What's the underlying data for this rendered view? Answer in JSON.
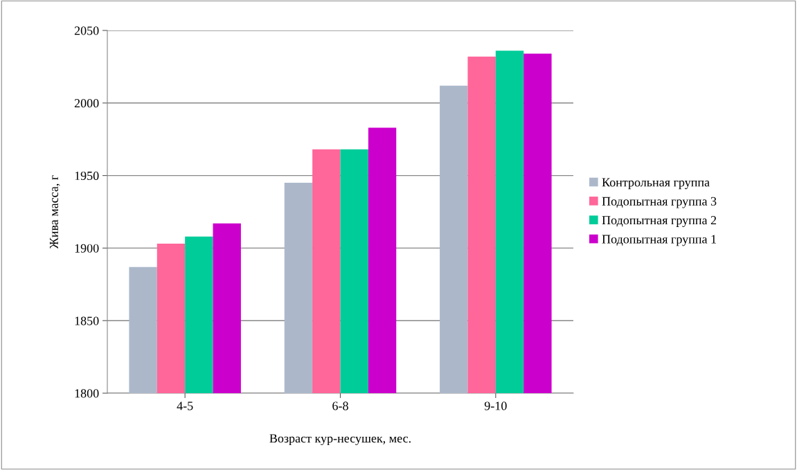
{
  "chart_data": {
    "type": "bar",
    "xlabel": "Возраст кур-несушек, мес.",
    "ylabel": "Жива масса, г",
    "categories": [
      "4-5",
      "6-8",
      "9-10"
    ],
    "series": [
      {
        "name": "Контрольная группа",
        "color": "#acb8ca",
        "values": [
          1887,
          1945,
          2012
        ]
      },
      {
        "name": "Подопытная группа 3",
        "color": "#ff6699",
        "values": [
          1903,
          1968,
          2032
        ]
      },
      {
        "name": "Подопытная группа 2",
        "color": "#00cc99",
        "values": [
          1908,
          1968,
          2036
        ]
      },
      {
        "name": "Подопытная группа 1",
        "color": "#cc00cc",
        "values": [
          1917,
          1983,
          2034
        ]
      }
    ],
    "ylim": [
      1800,
      2050
    ],
    "yticks": [
      1800,
      1850,
      1900,
      1950,
      2000,
      2050
    ],
    "grid": "y",
    "legend": "right"
  }
}
